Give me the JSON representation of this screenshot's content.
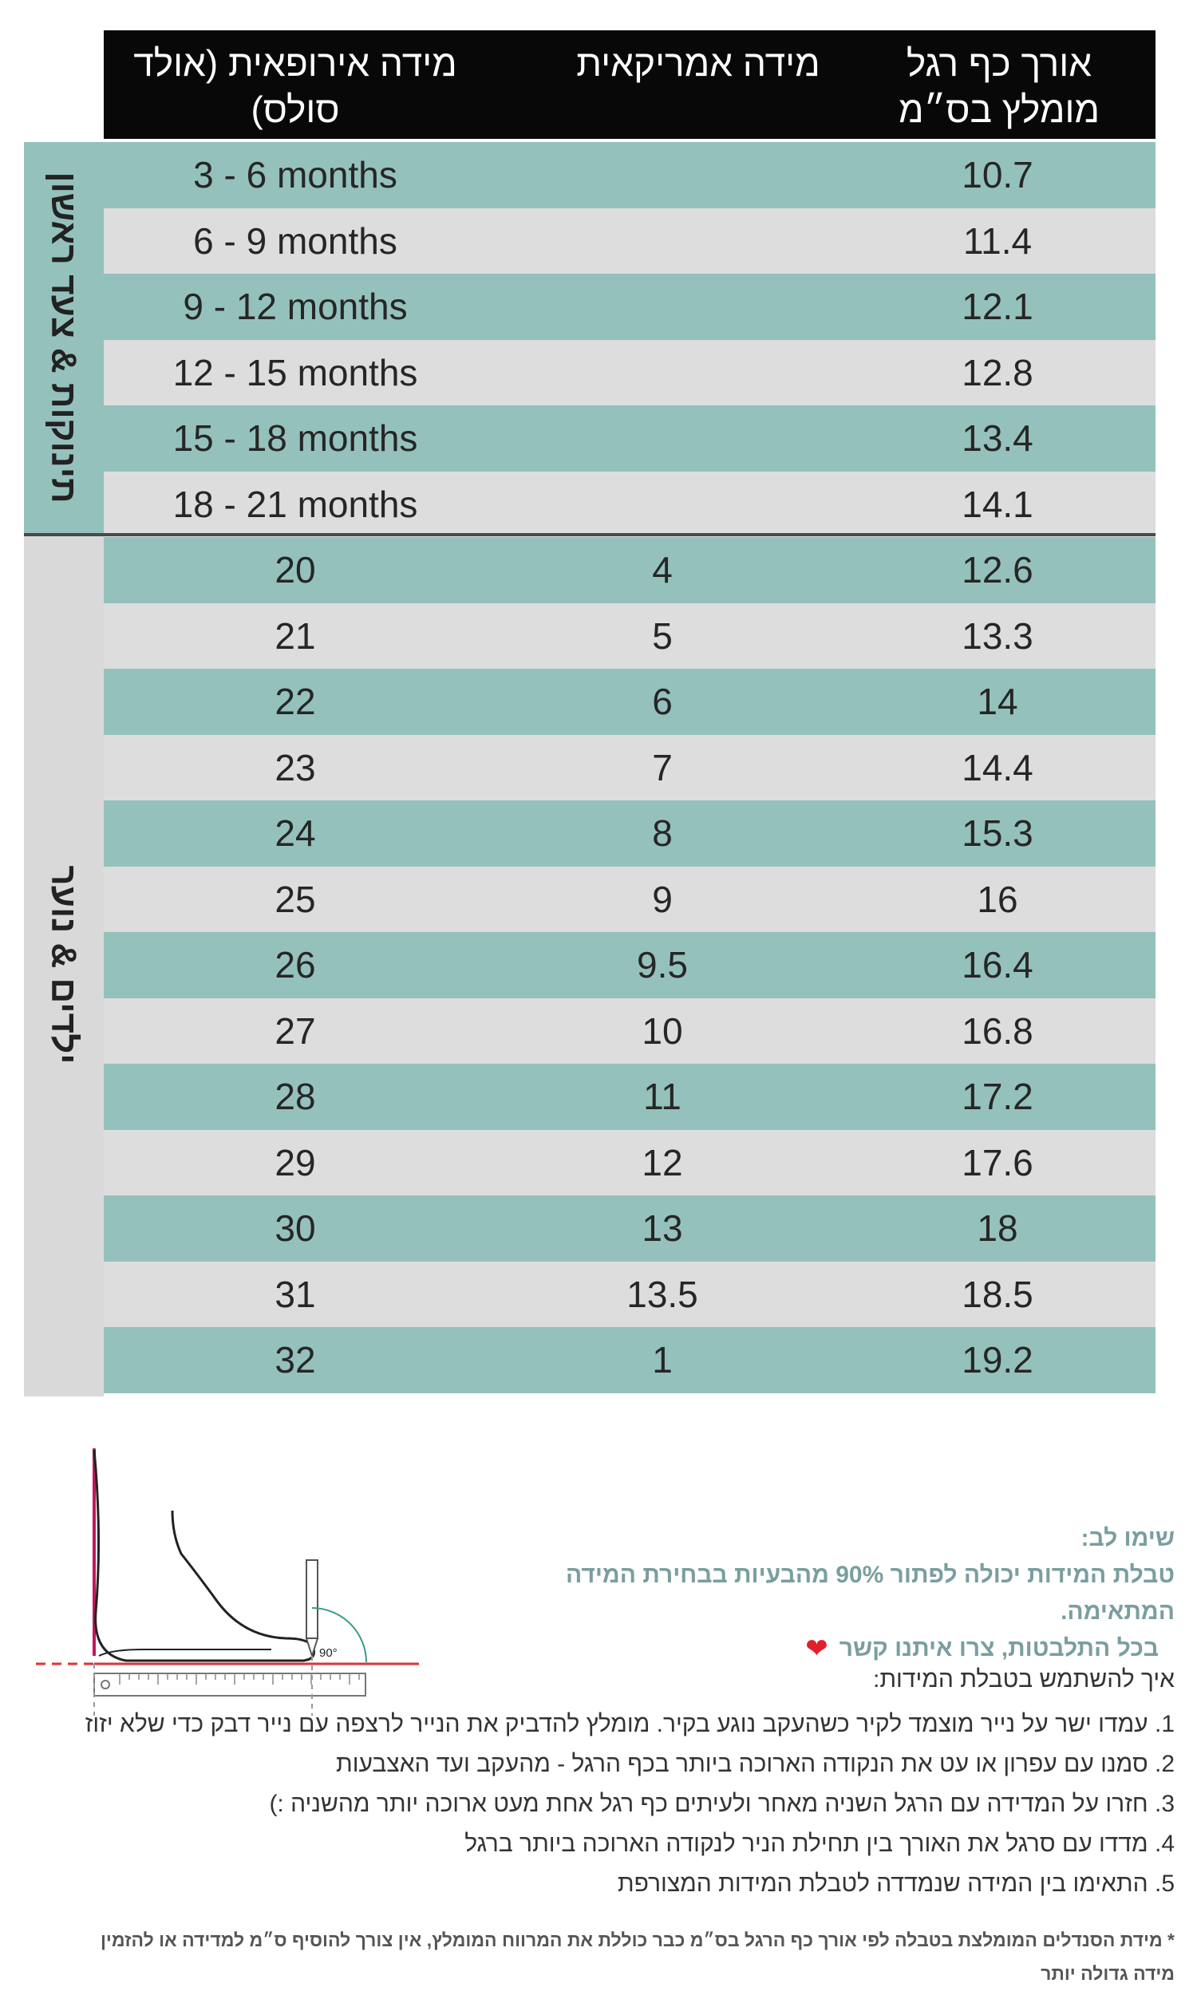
{
  "table": {
    "headers": {
      "length": "אורך כף רגל\nמומלץ בס״מ",
      "us": "מידה אמריקאית",
      "eu": "מידה אירופאית (אולד\nסולס)"
    },
    "sections": {
      "baby": "תינוקות & צעד ראשון",
      "kids": "ילדים & נוער"
    },
    "baby_rows": [
      {
        "eu": "3 - 6 months",
        "us": "",
        "length": "10.7"
      },
      {
        "eu": "6 - 9 months",
        "us": "",
        "length": "11.4"
      },
      {
        "eu": "9 - 12 months",
        "us": "",
        "length": "12.1"
      },
      {
        "eu": "12 - 15 months",
        "us": "",
        "length": "12.8"
      },
      {
        "eu": "15 - 18 months",
        "us": "",
        "length": "13.4"
      },
      {
        "eu": "18 - 21 months",
        "us": "",
        "length": "14.1"
      }
    ],
    "kids_rows": [
      {
        "eu": "20",
        "us": "4",
        "length": "12.6"
      },
      {
        "eu": "21",
        "us": "5",
        "length": "13.3"
      },
      {
        "eu": "22",
        "us": "6",
        "length": "14"
      },
      {
        "eu": "23",
        "us": "7",
        "length": "14.4"
      },
      {
        "eu": "24",
        "us": "8",
        "length": "15.3"
      },
      {
        "eu": "25",
        "us": "9",
        "length": "16"
      },
      {
        "eu": "26",
        "us": "9.5",
        "length": "16.4"
      },
      {
        "eu": "27",
        "us": "10",
        "length": "16.8"
      },
      {
        "eu": "28",
        "us": "11",
        "length": "17.2"
      },
      {
        "eu": "29",
        "us": "12",
        "length": "17.6"
      },
      {
        "eu": "30",
        "us": "13",
        "length": "18"
      },
      {
        "eu": "31",
        "us": "13.5",
        "length": "18.5"
      },
      {
        "eu": "32",
        "us": "1",
        "length": "19.2"
      }
    ]
  },
  "illustration": {
    "angle_label": "90°"
  },
  "notes": {
    "title": "שימו לב:",
    "line1": "טבלת המידות יכולה לפתור 90% מהבעיות בבחירת המידה המתאימה.",
    "line2": "בכל התלבטות, צרו איתנו קשר",
    "heart": "❤"
  },
  "instructions": {
    "title": "איך להשתמש בטבלת המידות:",
    "items": [
      "1. עמדו ישר על נייר מוצמד לקיר כשהעקב נוגע בקיר. מומלץ להדביק את הנייר לרצפה עם נייר דבק כדי שלא יזוז",
      "2. סמנו עם עפרון או עט את הנקודה הארוכה ביותר בכף הרגל - מהעקב ועד האצבעות",
      "3. חזרו על המדידה עם הרגל השניה מאחר ולעיתים כף רגל אחת מעט ארוכה יותר מהשניה :)",
      "4. מדדו עם סרגל את האורך בין תחילת הניר לנקודה הארוכה ביותר ברגל",
      "5. התאימו בין המידה שנמדדה לטבלת המידות המצורפת"
    ]
  },
  "footnote": {
    "line1": "* מידת הסנדלים המומלצת בטבלה לפי אורך כף הרגל בס״מ כבר כוללת את המרווח המומלץ, אין צורך להוסיף ס״מ למדידה או להזמין",
    "line2": "מידה גדולה יותר"
  }
}
